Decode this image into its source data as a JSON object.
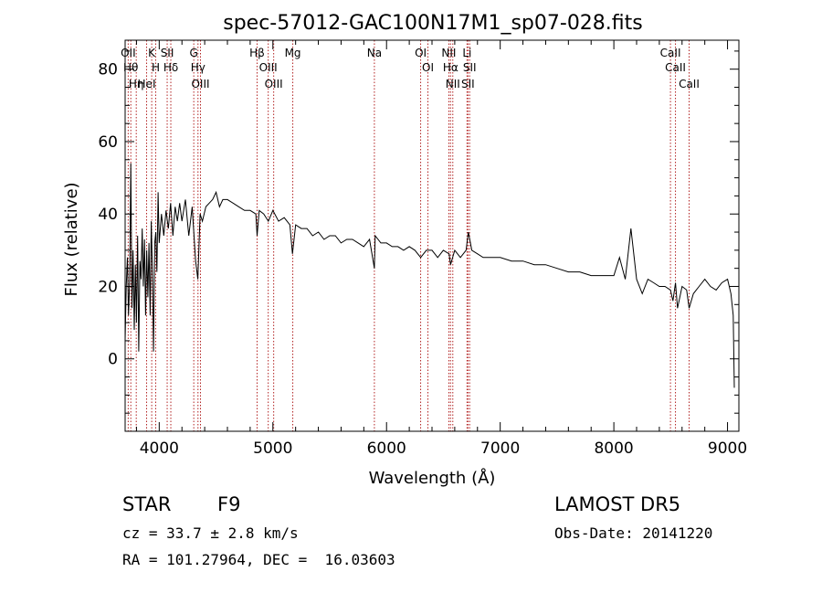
{
  "chart_data": {
    "type": "line",
    "title": "spec-57012-GAC100N17M1_sp07-028.fits",
    "xlabel": "Wavelength (Å)",
    "ylabel": "Flux (relative)",
    "xlim": [
      3700,
      9100
    ],
    "ylim": [
      -20,
      88
    ],
    "xticks": [
      4000,
      5000,
      6000,
      7000,
      8000,
      9000
    ],
    "yticks": [
      0,
      20,
      40,
      60,
      80
    ],
    "grid": false,
    "series": [
      {
        "x": [
          3700,
          3710,
          3720,
          3730,
          3740,
          3750,
          3760,
          3770,
          3780,
          3790,
          3800,
          3810,
          3820,
          3830,
          3840,
          3850,
          3860,
          3870,
          3880,
          3890,
          3900,
          3910,
          3920,
          3930,
          3940,
          3950,
          3960,
          3970,
          3980,
          3990,
          4000,
          4020,
          4040,
          4060,
          4080,
          4100,
          4120,
          4140,
          4160,
          4180,
          4200,
          4230,
          4260,
          4290,
          4320,
          4340,
          4360,
          4380,
          4410,
          4440,
          4470,
          4500,
          4530,
          4560,
          4600,
          4650,
          4700,
          4750,
          4800,
          4850,
          4861,
          4880,
          4920,
          4960,
          5000,
          5050,
          5100,
          5150,
          5172,
          5200,
          5250,
          5300,
          5350,
          5400,
          5450,
          5500,
          5550,
          5600,
          5650,
          5700,
          5750,
          5800,
          5850,
          5893,
          5900,
          5950,
          6000,
          6050,
          6100,
          6150,
          6200,
          6250,
          6300,
          6350,
          6400,
          6450,
          6500,
          6550,
          6563,
          6600,
          6650,
          6700,
          6720,
          6750,
          6800,
          6850,
          6900,
          6950,
          7000,
          7100,
          7200,
          7300,
          7400,
          7500,
          7600,
          7700,
          7800,
          7900,
          8000,
          8050,
          8100,
          8150,
          8200,
          8250,
          8300,
          8350,
          8400,
          8450,
          8498,
          8520,
          8542,
          8560,
          8600,
          8640,
          8662,
          8700,
          8750,
          8800,
          8850,
          8900,
          8950,
          9000,
          9030,
          9050,
          9060
        ],
        "y": [
          5,
          20,
          28,
          12,
          22,
          54,
          14,
          30,
          8,
          26,
          10,
          34,
          2,
          27,
          22,
          36,
          20,
          33,
          12,
          30,
          17,
          32,
          12,
          38,
          24,
          2,
          32,
          35,
          24,
          46,
          32,
          40,
          34,
          41,
          36,
          43,
          34,
          42,
          38,
          43,
          38,
          44,
          34,
          42,
          27,
          22,
          40,
          38,
          42,
          43,
          44,
          46,
          42,
          44,
          44,
          43,
          42,
          41,
          41,
          40,
          34,
          41,
          40,
          38,
          41,
          38,
          39,
          37,
          29,
          37,
          36,
          36,
          34,
          35,
          33,
          34,
          34,
          32,
          33,
          33,
          32,
          31,
          33,
          25,
          34,
          32,
          32,
          31,
          31,
          30,
          31,
          30,
          28,
          30,
          30,
          28,
          30,
          29,
          26,
          30,
          28,
          30,
          35,
          30,
          29,
          28,
          28,
          28,
          28,
          27,
          27,
          26,
          26,
          25,
          24,
          24,
          23,
          23,
          23,
          28,
          22,
          36,
          22,
          18,
          22,
          21,
          20,
          20,
          19,
          16,
          21,
          14,
          20,
          19,
          14,
          18,
          20,
          22,
          20,
          19,
          21,
          22,
          18,
          12,
          -8
        ]
      }
    ],
    "lines": [
      {
        "x": 3727,
        "label": "OII"
      },
      {
        "x": 3750,
        "label": "Hθ"
      },
      {
        "x": 3798,
        "label": "Hη"
      },
      {
        "x": 3889,
        "label": "HeI"
      },
      {
        "x": 3934,
        "label": "K"
      },
      {
        "x": 3969,
        "label": "H"
      },
      {
        "x": 4070,
        "label": "SII"
      },
      {
        "x": 4102,
        "label": "Hδ"
      },
      {
        "x": 4304,
        "label": "G"
      },
      {
        "x": 4341,
        "label": "Hγ"
      },
      {
        "x": 4363,
        "label": "OIII"
      },
      {
        "x": 4861,
        "label": "Hβ"
      },
      {
        "x": 4959,
        "label": "OIII"
      },
      {
        "x": 5007,
        "label": "OIII"
      },
      {
        "x": 5175,
        "label": "Mg"
      },
      {
        "x": 5893,
        "label": "Na"
      },
      {
        "x": 6300,
        "label": "OI"
      },
      {
        "x": 6364,
        "label": "OI"
      },
      {
        "x": 6548,
        "label": "NII"
      },
      {
        "x": 6563,
        "label": "Hα"
      },
      {
        "x": 6583,
        "label": "NII"
      },
      {
        "x": 6708,
        "label": "Li"
      },
      {
        "x": 6716,
        "label": "SII"
      },
      {
        "x": 6731,
        "label": "SII"
      },
      {
        "x": 8498,
        "label": "CaII"
      },
      {
        "x": 8542,
        "label": "CaII"
      },
      {
        "x": 8662,
        "label": "CaII"
      }
    ]
  },
  "info": {
    "class": "STAR",
    "subclass": "F9",
    "cz": "cz = 33.7 ± 2.8 km/s",
    "coords": "RA = 101.27964, DEC =  16.03603",
    "survey": "LAMOST DR5",
    "obs_date": "Obs-Date: 20141220"
  }
}
